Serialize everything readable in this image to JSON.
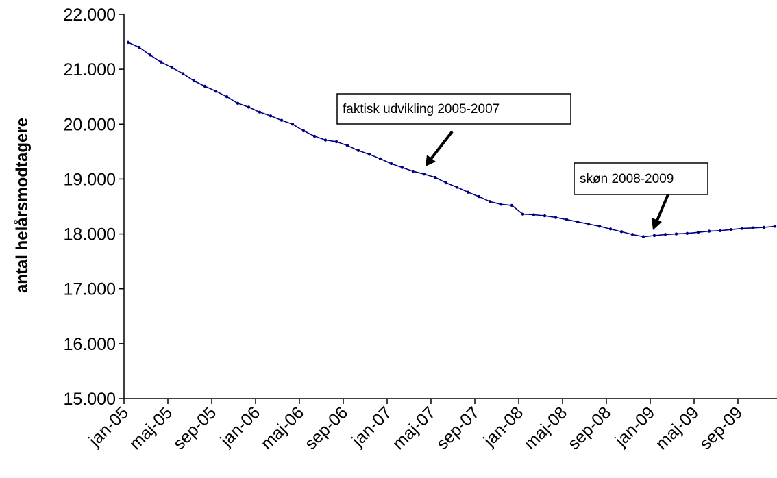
{
  "chart_data": {
    "type": "line",
    "title": "",
    "xlabel": "",
    "ylabel": "antal helårsmodtagere",
    "ylim": [
      15000,
      22000
    ],
    "yticks": [
      "15.000",
      "16.000",
      "17.000",
      "18.000",
      "19.000",
      "20.000",
      "21.000",
      "22.000"
    ],
    "xtick_labels": [
      "jan-05",
      "maj-05",
      "sep-05",
      "jan-06",
      "maj-06",
      "sep-06",
      "jan-07",
      "maj-07",
      "sep-07",
      "jan-08",
      "maj-08",
      "sep-08",
      "jan-09",
      "maj-09",
      "sep-09"
    ],
    "grid": false,
    "series": [
      {
        "color": "#000080",
        "x": [
          "jan-05",
          "feb-05",
          "mar-05",
          "apr-05",
          "maj-05",
          "jun-05",
          "jul-05",
          "aug-05",
          "sep-05",
          "okt-05",
          "nov-05",
          "dec-05",
          "jan-06",
          "feb-06",
          "mar-06",
          "apr-06",
          "maj-06",
          "jun-06",
          "jul-06",
          "aug-06",
          "sep-06",
          "okt-06",
          "nov-06",
          "dec-06",
          "jan-07",
          "feb-07",
          "mar-07",
          "apr-07",
          "maj-07",
          "jun-07",
          "jul-07",
          "aug-07",
          "sep-07",
          "okt-07",
          "nov-07",
          "dec-07",
          "jan-08",
          "feb-08",
          "mar-08",
          "apr-08",
          "maj-08",
          "jun-08",
          "jul-08",
          "aug-08",
          "sep-08",
          "okt-08",
          "nov-08",
          "dec-08",
          "jan-09",
          "feb-09",
          "mar-09",
          "apr-09",
          "maj-09",
          "jun-09",
          "jul-09",
          "aug-09",
          "sep-09",
          "okt-09",
          "nov-09",
          "dec-09"
        ],
        "values": [
          21490,
          21400,
          21260,
          21130,
          21030,
          20920,
          20790,
          20690,
          20600,
          20500,
          20380,
          20310,
          20220,
          20150,
          20070,
          20000,
          19880,
          19780,
          19710,
          19680,
          19610,
          19520,
          19450,
          19370,
          19280,
          19210,
          19140,
          19090,
          19030,
          18930,
          18850,
          18760,
          18680,
          18590,
          18540,
          18520,
          18360,
          18350,
          18330,
          18300,
          18260,
          18220,
          18180,
          18140,
          18090,
          18040,
          17990,
          17950,
          17970,
          17990,
          18000,
          18010,
          18030,
          18050,
          18060,
          18080,
          18100,
          18110,
          18120,
          18140
        ]
      }
    ],
    "annotations": [
      {
        "text": "faktisk udvikling 2005-2007"
      },
      {
        "text": "skøn 2008-2009"
      }
    ]
  }
}
